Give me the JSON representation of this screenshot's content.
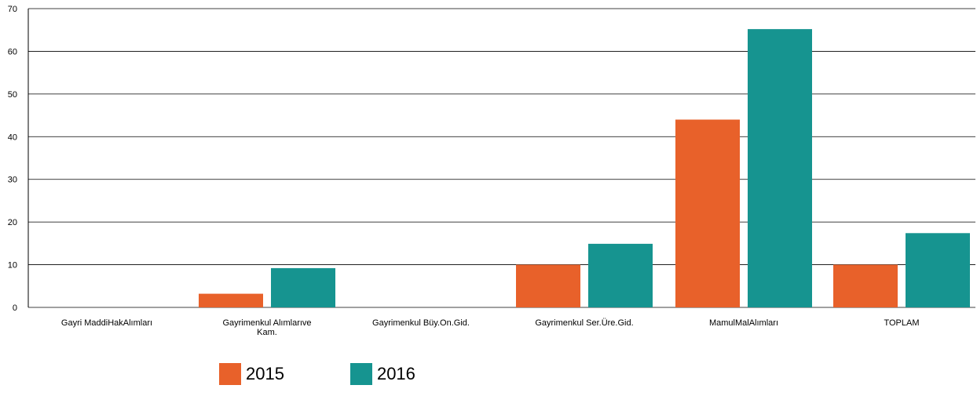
{
  "chart_data": {
    "type": "bar",
    "categories": [
      [
        "Gayri MaddiHakAlımları"
      ],
      [
        "Gayrimenkul Alımlarıve",
        "Kam."
      ],
      [
        "Gayrimenkul Büy.On.Gid."
      ],
      [
        "Gayrimenkul Ser.Üre.Gid."
      ],
      [
        "MamulMalAlımları"
      ],
      [
        "TOPLAM"
      ]
    ],
    "series": [
      {
        "name": "2015",
        "color": "#e8612a",
        "values": [
          0,
          3.2,
          0,
          10.0,
          44.0,
          10.0
        ]
      },
      {
        "name": "2016",
        "color": "#169490",
        "values": [
          0,
          9.2,
          0,
          14.9,
          65.2,
          17.4
        ]
      }
    ],
    "ylim": [
      0,
      70
    ],
    "yticks": [
      "0",
      "10",
      "20",
      "30",
      "40",
      "50",
      "60",
      "70"
    ],
    "grid": true,
    "legend_position": "bottom-left"
  }
}
